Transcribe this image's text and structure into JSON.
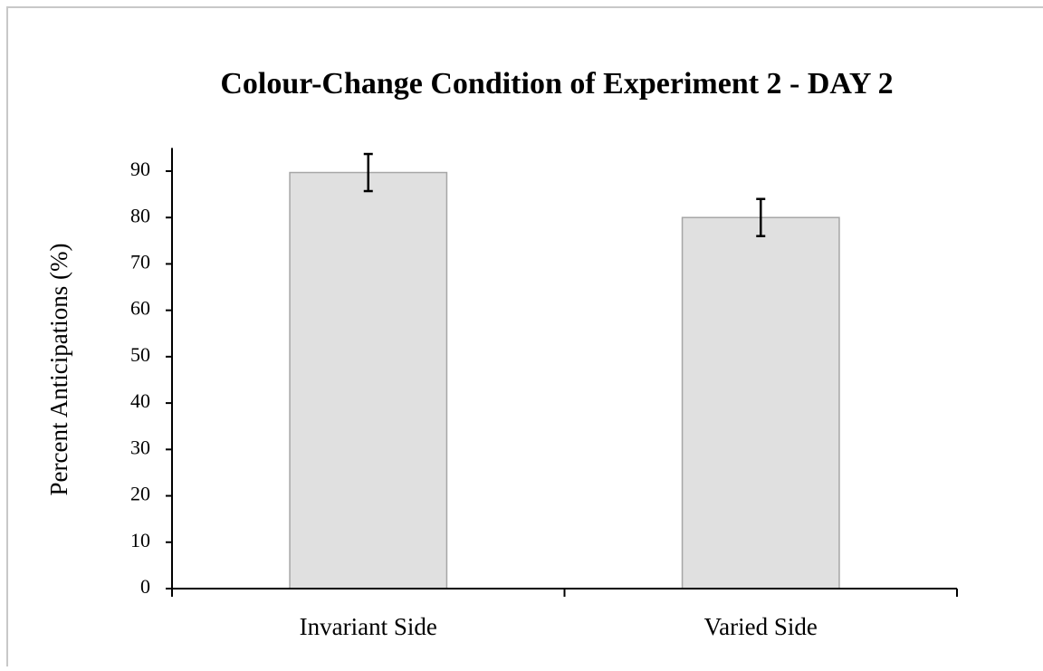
{
  "chart_data": {
    "type": "bar",
    "title": "Colour-Change Condition of Experiment 2 - DAY 2",
    "y_label": "Percent Anticipations (%)",
    "categories": [
      "Invariant Side",
      "Varied Side"
    ],
    "values": [
      89.7,
      80
    ],
    "errors": [
      4,
      4
    ],
    "color": "#e0e0e0",
    "ylim": [
      0,
      95
    ],
    "yticks": [
      0,
      10,
      20,
      30,
      40,
      50,
      60,
      70,
      80,
      90
    ],
    "grid": false
  }
}
